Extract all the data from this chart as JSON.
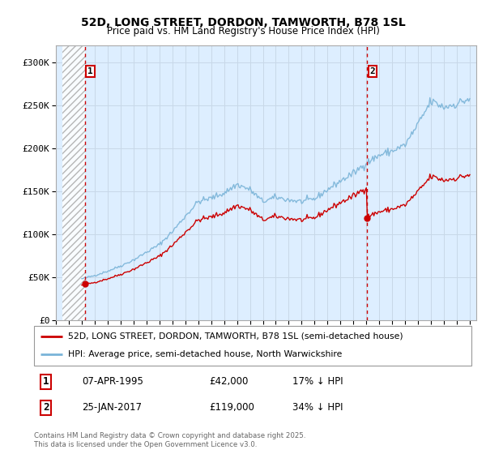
{
  "title_line1": "52D, LONG STREET, DORDON, TAMWORTH, B78 1SL",
  "title_line2": "Price paid vs. HM Land Registry's House Price Index (HPI)",
  "ylabel_ticks": [
    "£0",
    "£50K",
    "£100K",
    "£150K",
    "£200K",
    "£250K",
    "£300K"
  ],
  "ytick_values": [
    0,
    50000,
    100000,
    150000,
    200000,
    250000,
    300000
  ],
  "ylim": [
    0,
    320000
  ],
  "xlim_start": 1993.5,
  "xlim_end": 2025.5,
  "hpi_color": "#7ab4d8",
  "price_color": "#cc0000",
  "background_color": "#ddeeff",
  "grid_color": "#c8d8e8",
  "legend_line1": "52D, LONG STREET, DORDON, TAMWORTH, B78 1SL (semi-detached house)",
  "legend_line2": "HPI: Average price, semi-detached house, North Warwickshire",
  "transaction1_label": "1",
  "transaction1_date": "07-APR-1995",
  "transaction1_price": "£42,000",
  "transaction1_hpi": "17% ↓ HPI",
  "transaction1_year": 1995.27,
  "transaction1_value": 42000,
  "transaction2_label": "2",
  "transaction2_date": "25-JAN-2017",
  "transaction2_price": "£119,000",
  "transaction2_hpi": "34% ↓ HPI",
  "transaction2_year": 2017.07,
  "transaction2_value": 119000,
  "copyright_text": "Contains HM Land Registry data © Crown copyright and database right 2025.\nThis data is licensed under the Open Government Licence v3.0."
}
